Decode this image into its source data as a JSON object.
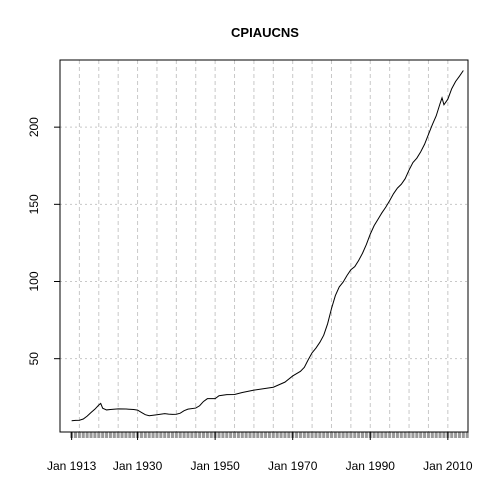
{
  "chart_data": {
    "type": "line",
    "title": "CPIAUCNS",
    "xlabel": "",
    "ylabel": "",
    "x_tick_labels": [
      "Jan 1913",
      "Jan 1930",
      "Jan 1950",
      "Jan 1970",
      "Jan 1990",
      "Jan 2010"
    ],
    "x_tick_years": [
      1913,
      1930,
      1950,
      1970,
      1990,
      2010
    ],
    "y_ticks": [
      50,
      100,
      150,
      200
    ],
    "xlim": [
      1910.0,
      2015.2
    ],
    "ylim": [
      2.5,
      243.5
    ],
    "grid": true,
    "series": [
      {
        "x": [
          1913,
          1914,
          1915,
          1916,
          1917,
          1918,
          1919,
          1920,
          1920.5,
          1921,
          1922,
          1923,
          1925,
          1927,
          1929,
          1930,
          1931,
          1932,
          1933,
          1935,
          1937,
          1938,
          1939,
          1940,
          1941,
          1942,
          1943,
          1945,
          1946,
          1947,
          1948,
          1950,
          1951,
          1953,
          1955,
          1957,
          1960,
          1965,
          1968,
          1970,
          1972,
          1973,
          1974,
          1975,
          1976,
          1977,
          1978,
          1979,
          1980,
          1981,
          1982,
          1983,
          1984,
          1985,
          1986,
          1987,
          1988,
          1989,
          1990,
          1991,
          1992,
          1993,
          1994,
          1995,
          1996,
          1997,
          1998,
          1999,
          2000,
          2001,
          2002,
          2003,
          2004,
          2005,
          2006,
          2007,
          2008,
          2008.5,
          2009,
          2010,
          2011,
          2012,
          2013,
          2014
        ],
        "values": [
          9.8,
          10.0,
          10.1,
          10.9,
          12.8,
          15.1,
          17.3,
          20.0,
          21.0,
          17.9,
          16.8,
          17.1,
          17.5,
          17.4,
          17.1,
          16.7,
          15.2,
          13.7,
          13.0,
          13.7,
          14.4,
          14.1,
          13.9,
          14.0,
          14.7,
          16.3,
          17.3,
          18.0,
          19.5,
          22.3,
          24.1,
          24.1,
          26.0,
          26.7,
          26.8,
          28.1,
          29.6,
          31.5,
          34.8,
          38.8,
          41.8,
          44.4,
          49.3,
          53.8,
          56.9,
          60.6,
          65.2,
          72.6,
          82.4,
          90.9,
          96.5,
          99.6,
          103.9,
          107.6,
          109.6,
          113.6,
          118.3,
          124.0,
          130.7,
          136.2,
          140.3,
          144.5,
          148.2,
          152.4,
          156.9,
          160.5,
          163.0,
          166.6,
          172.2,
          177.1,
          179.9,
          184.0,
          188.9,
          195.3,
          201.6,
          207.3,
          215.3,
          219.0,
          214.5,
          218.1,
          224.9,
          229.6,
          233.0,
          236.7
        ]
      }
    ]
  }
}
